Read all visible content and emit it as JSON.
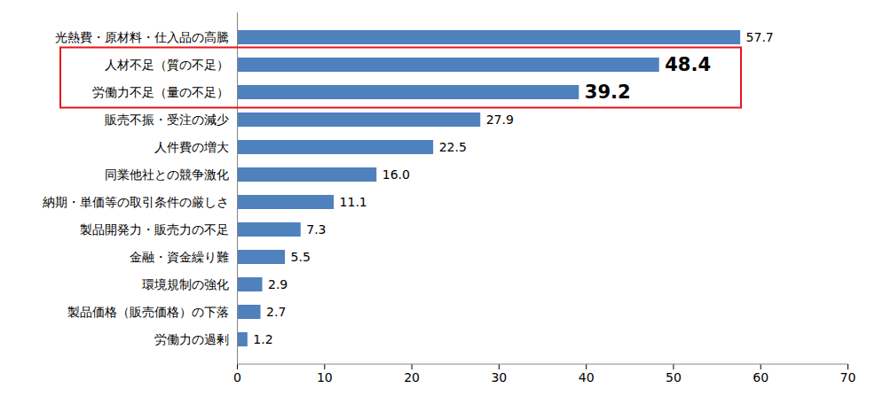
{
  "chart_data": {
    "type": "bar",
    "orientation": "horizontal",
    "categories": [
      "光熱費・原材料・仕入品の高騰",
      "人材不足（質の不足）",
      "労働力不足（量の不足）",
      "販売不振・受注の減少",
      "人件費の増大",
      "同業他社との競争激化",
      "納期・単価等の取引条件の厳しさ",
      "製品開発力・販売力の不足",
      "金融・資金繰り難",
      "環境規制の強化",
      "製品価格（販売価格）の下落",
      "労働力の過剰"
    ],
    "values": [
      57.7,
      48.4,
      39.2,
      27.9,
      22.5,
      16.0,
      11.1,
      7.3,
      5.5,
      2.9,
      2.7,
      1.2
    ],
    "value_labels": [
      "57.7",
      "48.4",
      "39.2",
      "27.9",
      "22.5",
      "16.0",
      "11.1",
      "7.3",
      "5.5",
      "2.9",
      "2.7",
      "1.2"
    ],
    "color": "#4f81bd",
    "xlim": [
      0,
      70
    ],
    "xticks": [
      0,
      10,
      20,
      30,
      40,
      50,
      60,
      70
    ],
    "grid": false,
    "data_labels": true
  }
}
